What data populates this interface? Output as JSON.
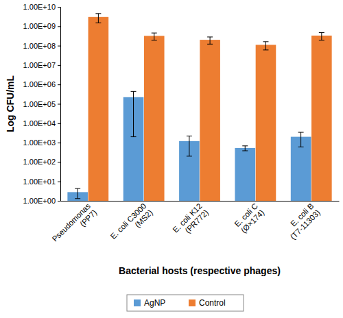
{
  "chart_data": {
    "type": "bar",
    "log": "y",
    "grid": false,
    "legend": "bottom",
    "x_label": "Bacterial hosts (respective phages)",
    "y_label": "Log CFU/mL",
    "categories": [
      "Pseudomonas (PP7)",
      "E. coli C3000 (MS2)",
      "E. coli K12 (PR772)",
      "E. coli C (Ø×174)",
      "E. coli B (T7-11303)"
    ],
    "series": [
      {
        "name": "AgNP",
        "color": "#5b9bd5",
        "values": [
          2.8,
          220000,
          1200,
          530,
          2000
        ],
        "errors": [
          1.5,
          218000,
          1000,
          150,
          1400
        ]
      },
      {
        "name": "Control",
        "color": "#ed7d31",
        "values": [
          3000000000,
          320000000,
          200000000,
          110000000,
          330000000
        ],
        "errors": [
          1500000000,
          130000000,
          80000000,
          50000000,
          140000000
        ]
      }
    ],
    "ylim": [
      1,
      10000000000
    ],
    "yticks": [
      {
        "value": 1,
        "label": "1.00E+00"
      },
      {
        "value": 10,
        "label": "1.00E+01"
      },
      {
        "value": 100,
        "label": "1.00E+02"
      },
      {
        "value": 1000,
        "label": "1.00E+03"
      },
      {
        "value": 10000,
        "label": "1.00E+04"
      },
      {
        "value": 100000,
        "label": "1.00E+05"
      },
      {
        "value": 1000000,
        "label": "1.00E+06"
      },
      {
        "value": 10000000,
        "label": "1.00E+07"
      },
      {
        "value": 100000000,
        "label": "1.00E+08"
      },
      {
        "value": 1000000000,
        "label": "1.00E+09"
      },
      {
        "value": 10000000000,
        "label": "1.00E+10"
      }
    ]
  }
}
